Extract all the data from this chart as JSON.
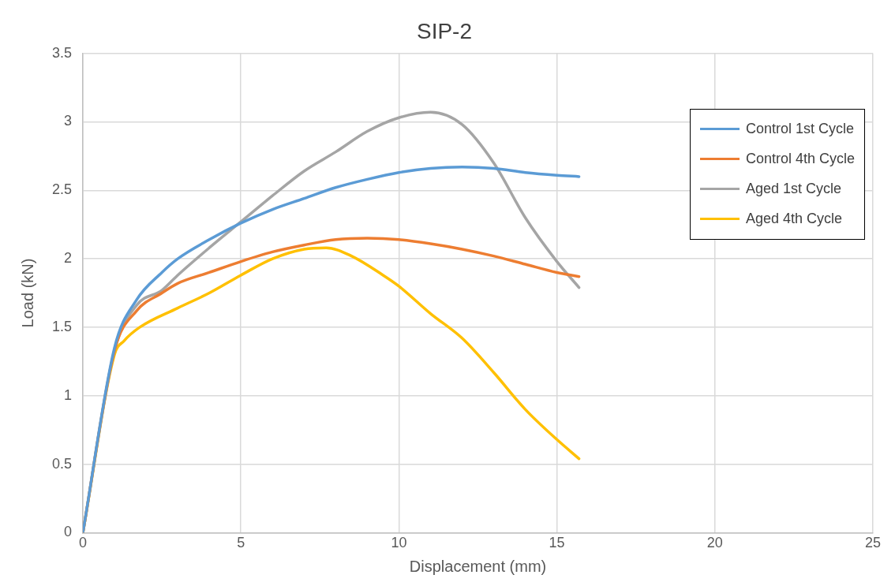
{
  "chart_data": {
    "type": "line",
    "title": "SIP-2",
    "xlabel": "Displacement (mm)",
    "ylabel": "Load (kN)",
    "xlim": [
      0,
      25
    ],
    "xticks": [
      0,
      5,
      10,
      15,
      20,
      25
    ],
    "ylim": [
      0,
      3.5
    ],
    "yticks": [
      0,
      0.5,
      1,
      1.5,
      2,
      2.5,
      3,
      3.5
    ],
    "grid": true,
    "legend": "top right",
    "marker": "none",
    "line_style": "solid",
    "series": [
      {
        "name": "Control 1st Cycle",
        "color": "#5b9bd5",
        "x": [
          0,
          1,
          1.7,
          2.5,
          3,
          4,
          5,
          6,
          7,
          8,
          9,
          10,
          11,
          12,
          13,
          14,
          15,
          15.7
        ],
        "values": [
          0,
          1.35,
          1.7,
          1.9,
          2.0,
          2.14,
          2.26,
          2.36,
          2.44,
          2.52,
          2.58,
          2.63,
          2.66,
          2.67,
          2.66,
          2.63,
          2.61,
          2.6
        ]
      },
      {
        "name": "Control 4th Cycle",
        "color": "#ed7d31",
        "x": [
          0,
          1,
          1.7,
          2.5,
          3,
          4,
          5,
          6,
          7,
          8,
          9,
          10,
          11,
          12,
          13,
          14,
          15,
          15.7
        ],
        "values": [
          0,
          1.33,
          1.62,
          1.75,
          1.82,
          1.9,
          1.98,
          2.05,
          2.1,
          2.14,
          2.15,
          2.14,
          2.11,
          2.07,
          2.02,
          1.96,
          1.9,
          1.87
        ]
      },
      {
        "name": "Aged 1st Cycle",
        "color": "#a5a5a5",
        "x": [
          0,
          1,
          1.7,
          2.5,
          3,
          4,
          5,
          6,
          7,
          8,
          9,
          10,
          11,
          12,
          13,
          14,
          15,
          15.7
        ],
        "values": [
          0,
          1.33,
          1.66,
          1.77,
          1.88,
          2.08,
          2.27,
          2.46,
          2.64,
          2.78,
          2.93,
          3.03,
          3.07,
          2.98,
          2.7,
          2.3,
          1.98,
          1.79
        ]
      },
      {
        "name": "Aged 4th Cycle",
        "color": "#ffc000",
        "x": [
          0,
          1,
          1.3,
          1.8,
          3,
          4,
          5,
          6,
          7,
          7.7,
          8.5,
          9.5,
          10,
          11,
          12,
          13,
          14,
          15,
          15.7
        ],
        "values": [
          0,
          1.3,
          1.4,
          1.5,
          1.64,
          1.75,
          1.88,
          2.0,
          2.07,
          2.08,
          2.02,
          1.88,
          1.8,
          1.6,
          1.42,
          1.17,
          0.9,
          0.68,
          0.54
        ]
      }
    ]
  }
}
